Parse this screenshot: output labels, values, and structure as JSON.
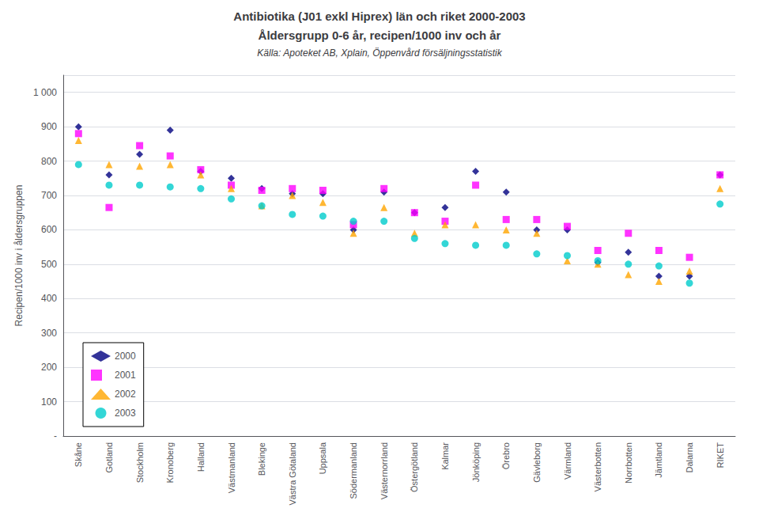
{
  "chart_data": {
    "type": "scatter",
    "title": "Antibiotika (J01 exkl Hiprex) län och riket 2000-2003",
    "subtitle": "Åldersgrupp 0-6 år, recipen/1000 inv och år",
    "annotations": [
      "Källa: Apoteket AB, Xplain, Öppenvård försäljningsstatistik"
    ],
    "ylabel": "Recipen/1000 inv i åldersgruppen",
    "categories": [
      "Skåne",
      "Gotland",
      "Stockholm",
      "Kronoberg",
      "Halland",
      "Västmanland",
      "Blekinge",
      "Västra Götaland",
      "Uppsala",
      "Södermanland",
      "Västernorrland",
      "Östergötland",
      "Kalmar",
      "Jönköping",
      "Örebro",
      "Gävleborg",
      "Värmland",
      "Västerbotten",
      "Norrbotten",
      "Jämtland",
      "Dalarna",
      "RIKET"
    ],
    "series": [
      {
        "name": "2000",
        "color": "#000080",
        "marker": "diamond",
        "values": [
          900,
          760,
          820,
          890,
          770,
          750,
          720,
          705,
          705,
          600,
          710,
          650,
          665,
          770,
          710,
          600,
          600,
          505,
          535,
          465,
          465,
          760
        ]
      },
      {
        "name": "2001",
        "color": "#FF00FF",
        "marker": "square",
        "values": [
          880,
          665,
          845,
          815,
          775,
          730,
          715,
          720,
          715,
          615,
          720,
          650,
          625,
          730,
          630,
          630,
          610,
          540,
          590,
          540,
          520,
          760
        ]
      },
      {
        "name": "2002",
        "color": "#FFA500",
        "marker": "triangle",
        "values": [
          860,
          790,
          785,
          790,
          760,
          720,
          670,
          700,
          680,
          590,
          665,
          590,
          615,
          615,
          600,
          590,
          510,
          500,
          470,
          450,
          480,
          720
        ]
      },
      {
        "name": "2003",
        "color": "#00CCCC",
        "marker": "circle",
        "values": [
          790,
          730,
          730,
          725,
          720,
          690,
          670,
          645,
          640,
          625,
          625,
          575,
          560,
          555,
          555,
          530,
          525,
          510,
          500,
          495,
          445,
          675
        ]
      }
    ],
    "ylim": [
      0,
      1050
    ],
    "yticks": [
      {
        "value": 0,
        "label": "-"
      },
      100,
      200,
      300,
      400,
      500,
      600,
      700,
      800,
      900,
      {
        "value": 1000,
        "label": "1 000"
      }
    ],
    "grid": true,
    "legend": "lower left"
  }
}
